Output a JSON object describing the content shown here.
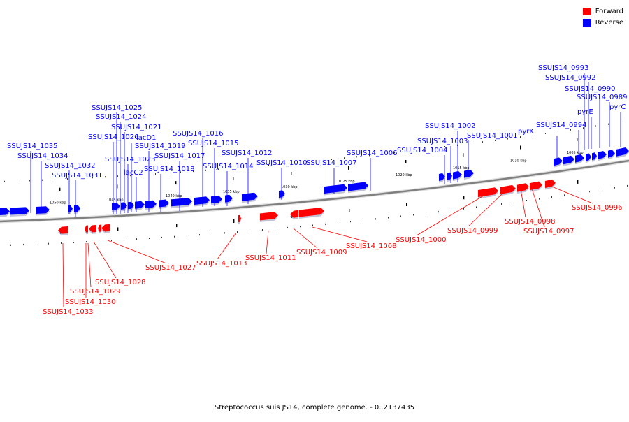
{
  "legend": {
    "forward": {
      "label": "Forward",
      "color": "#ff0000"
    },
    "reverse": {
      "label": "Reverse",
      "color": "#0000ff"
    }
  },
  "caption": "Streptococcus suis JS14, complete genome. - 0..2137435",
  "colors": {
    "forward": "#ff0000",
    "reverse": "#0000ff",
    "backbone": "#808080"
  },
  "scale_labels": [
    "1050 kbp",
    "1045 kbp",
    "1040 kbp",
    "1035 kbp",
    "1030 kbp",
    "1025 kbp",
    "1020 kbp",
    "1015 kbp",
    "1010 kbp",
    "1005 kbp"
  ],
  "reverse_genes": [
    "SSUJS14_1035",
    "SSUJS14_1034",
    "SSUJS14_1032",
    "SSUJS14_1031",
    "SSUJS14_1026",
    "SSUJS14_1025",
    "SSUJS14_1024",
    "SSUJS14_1021",
    "SSUJS14_1023",
    "lacD1",
    "lacC2",
    "SSUJS14_1019",
    "SSUJS14_1018",
    "SSUJS14_1017",
    "SSUJS14_1016",
    "SSUJS14_1015",
    "SSUJS14_1014",
    "SSUJS14_1012",
    "SSUJS14_1010",
    "SSUJS14_1007",
    "SSUJS14_1006",
    "SSUJS14_1004",
    "SSUJS14_1003",
    "SSUJS14_1002",
    "SSUJS14_1001",
    "pyrK",
    "SSUJS14_0994",
    "SSUJS14_0993",
    "SSUJS14_0992",
    "pyrE",
    "SSUJS14_0990",
    "SSUJS14_0989",
    "pyrC"
  ],
  "forward_genes": [
    "SSUJS14_1033",
    "SSUJS14_1030",
    "SSUJS14_1029",
    "SSUJS14_1028",
    "SSUJS14_1027",
    "SSUJS14_1013",
    "SSUJS14_1011",
    "SSUJS14_1009",
    "SSUJS14_1008",
    "SSUJS14_1000",
    "SSUJS14_0999",
    "SSUJS14_0998",
    "SSUJS14_0997",
    "SSUJS14_0996"
  ]
}
